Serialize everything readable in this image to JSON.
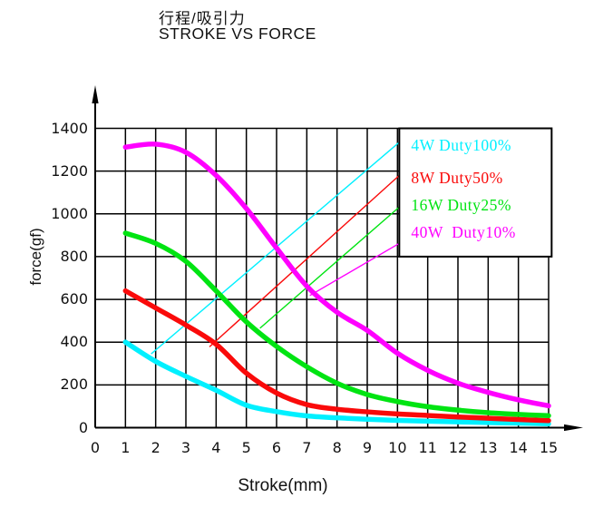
{
  "header": {
    "title_cn": "行程/吸引力",
    "title_en": "STROKE VS FORCE"
  },
  "chart_data": {
    "type": "line",
    "title_cn": "行程/吸引力",
    "title_en": "STROKE VS FORCE",
    "xlabel": "Stroke(mm)",
    "ylabel": "force(gf)",
    "xlim": [
      0,
      15
    ],
    "ylim": [
      0,
      1400
    ],
    "x_ticks": [
      0,
      1,
      2,
      3,
      4,
      5,
      6,
      7,
      8,
      9,
      10,
      11,
      12,
      13,
      14,
      15
    ],
    "y_ticks": [
      0,
      200,
      400,
      600,
      800,
      1000,
      1200,
      1400
    ],
    "grid": true,
    "x": [
      1,
      2,
      3,
      4,
      5,
      6,
      7,
      8,
      9,
      10,
      11,
      12,
      13,
      14,
      15
    ],
    "series": [
      {
        "name": "4W Duty100%",
        "color": "#00f0ff",
        "values": [
          400,
          310,
          240,
          175,
          105,
          75,
          55,
          46,
          39,
          34,
          30,
          27,
          24,
          21,
          18
        ]
      },
      {
        "name": "8W Duty50%",
        "color": "#fa0a0a",
        "values": [
          640,
          560,
          480,
          390,
          255,
          162,
          108,
          86,
          74,
          64,
          57,
          50,
          44,
          38,
          33
        ]
      },
      {
        "name": "16W Duty25%",
        "color": "#00e412",
        "values": [
          910,
          862,
          778,
          640,
          495,
          380,
          285,
          208,
          155,
          122,
          98,
          82,
          70,
          62,
          56
        ]
      },
      {
        "name": "40W  Duty10%",
        "color": "#ff00ff",
        "values": [
          1312,
          1326,
          1288,
          1180,
          1025,
          840,
          662,
          540,
          455,
          348,
          268,
          208,
          165,
          130,
          102
        ]
      }
    ],
    "legend": {
      "position": "top-right",
      "entries": [
        "4W Duty100%",
        "8W Duty50%",
        "16W Duty25%",
        "40W  Duty10%"
      ],
      "box_x": [
        10.06,
        15.1
      ],
      "box_y": [
        800,
        1400
      ],
      "label_x": 10.45,
      "label_y": [
        1317,
        1165,
        1037,
        910
      ]
    },
    "leaders": [
      {
        "color": "#00f0ff",
        "from": [
          1.85,
          345
        ],
        "to": [
          10.06,
          1335
        ]
      },
      {
        "color": "#fa0a0a",
        "from": [
          3.78,
          378
        ],
        "to": [
          10.06,
          1180
        ]
      },
      {
        "color": "#00e412",
        "from": [
          5.45,
          465
        ],
        "to": [
          10.06,
          1032
        ]
      },
      {
        "color": "#ff00ff",
        "from": [
          7.1,
          618
        ],
        "to": [
          10.06,
          862
        ]
      }
    ]
  }
}
